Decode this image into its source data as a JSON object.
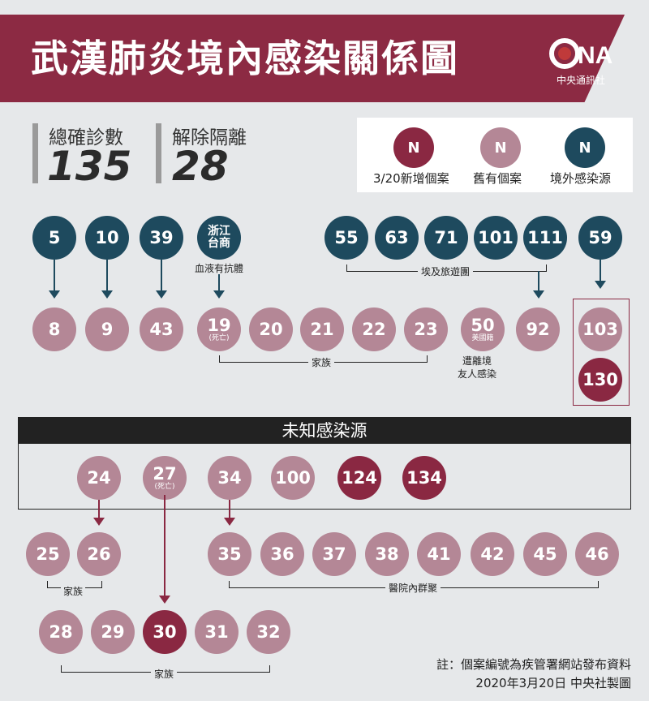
{
  "header": {
    "title": "武漢肺炎境內感染關係圖",
    "logo_text": "中央通訊社",
    "logo_mark": "CNA"
  },
  "stats": {
    "confirmed_label": "總確診數",
    "confirmed_value": "135",
    "released_label": "解除隔離",
    "released_value": "28"
  },
  "legend": {
    "symbol": "N",
    "new_label": "3/20新增個案",
    "old_label": "舊有個案",
    "imported_label": "境外感染源"
  },
  "colors": {
    "imported": "#1e4a5e",
    "old": "#b48796",
    "new": "#8a2842",
    "banner": "#8c2a43"
  },
  "top_sources": {
    "c5": "5",
    "c10": "10",
    "c39": "39",
    "zhejiang_line1": "浙江",
    "zhejiang_line2": "台商",
    "zhejiang_caption": "血液有抗體",
    "c55": "55",
    "c63": "63",
    "c71": "71",
    "c101": "101",
    "c111": "111",
    "egypt_caption": "埃及旅遊團",
    "c59": "59"
  },
  "row2": {
    "c8": "8",
    "c9": "9",
    "c43": "43",
    "c19": "19",
    "c19_note": "(死亡)",
    "c20": "20",
    "c21": "21",
    "c22": "22",
    "c23": "23",
    "family_caption": "家族",
    "c50": "50",
    "c50_note": "美國籍",
    "c50_caption_1": "遭離境",
    "c50_caption_2": "友人感染",
    "c92": "92",
    "c103": "103",
    "c130": "130"
  },
  "unknown": {
    "title": "未知感染源",
    "c24": "24",
    "c27": "27",
    "c27_note": "(死亡)",
    "c34": "34",
    "c100": "100",
    "c124": "124",
    "c134": "134"
  },
  "row4": {
    "c25": "25",
    "c26": "26",
    "family_caption": "家族",
    "c35": "35",
    "c36": "36",
    "c37": "37",
    "c38": "38",
    "c41": "41",
    "c42": "42",
    "c45": "45",
    "c46": "46",
    "hospital_caption": "醫院內群聚"
  },
  "row5": {
    "c28": "28",
    "c29": "29",
    "c30": "30",
    "c31": "31",
    "c32": "32",
    "family_caption": "家族"
  },
  "footer": {
    "note": "註：個案編號為疾管署網站發布資料",
    "credit": "2020年3月20日  中央社製圖"
  }
}
